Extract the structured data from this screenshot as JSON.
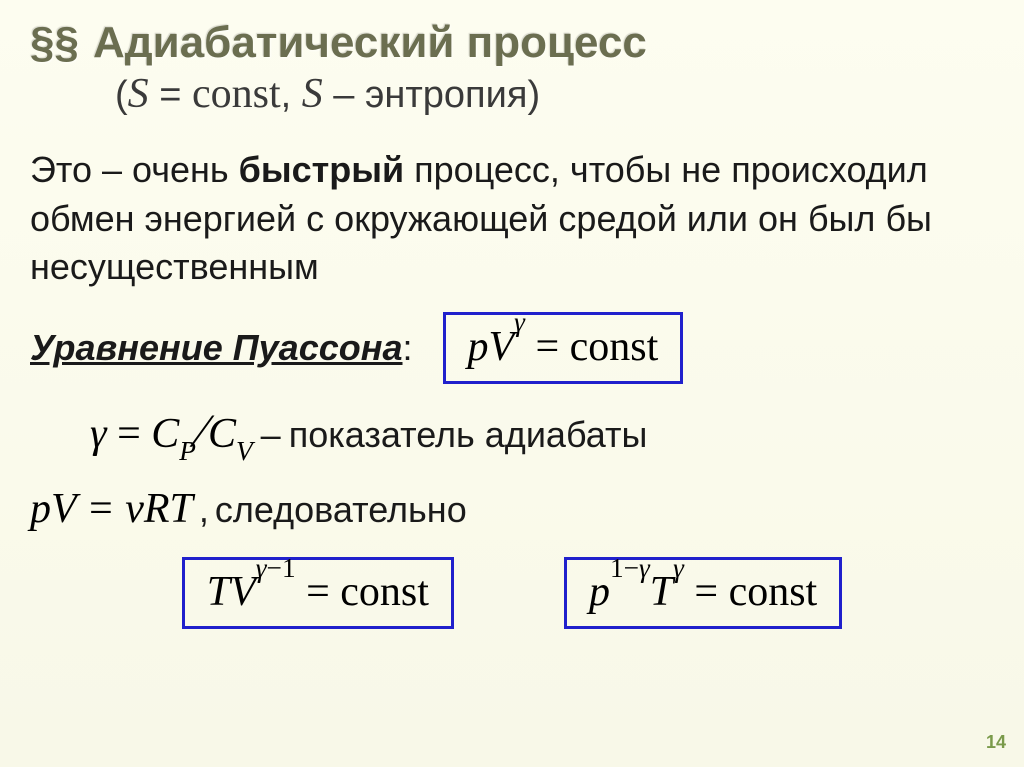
{
  "header": {
    "section_mark": "§§",
    "title": "Адиабатический процесс",
    "subtitle_open": "(",
    "subtitle_var1": "S",
    "subtitle_eq": " = ",
    "subtitle_const": "const",
    "subtitle_sep": ", ",
    "subtitle_var2": "S",
    "subtitle_dash": " – ",
    "subtitle_word": "энтропия",
    "subtitle_close": ")"
  },
  "paragraph": {
    "p1": "Это – очень ",
    "bold": "быстрый",
    "p2": " процесс, чтобы не происходил обмен энергией с окружающей средой или он был бы несущественным"
  },
  "poisson": {
    "label": "Уравнение Пуассона",
    "colon": ":",
    "eq_lhs_p": "p",
    "eq_lhs_V": "V",
    "eq_exp": "γ",
    "eq_eq": " = ",
    "eq_rhs": "const"
  },
  "gamma_def": {
    "gamma": "γ",
    "eq": " = ",
    "Cp": "C",
    "Cp_sub": "P",
    "slash": "⁄",
    "Cv": "C",
    "Cv_sub": "V",
    "dash": " – ",
    "desc": "показатель адиабаты"
  },
  "ideal_gas": {
    "lhs": "pV = νRT",
    "comma": ", ",
    "desc": "следовательно"
  },
  "box_tv": {
    "T": "T",
    "V": "V",
    "exp_pre": "γ",
    "exp_minus": "−1",
    "eq": " = ",
    "rhs": "const"
  },
  "box_pt": {
    "p": "p",
    "p_exp_pre": "1−",
    "p_exp": "γ",
    "T": "T",
    "T_exp": "γ",
    "eq": " = ",
    "rhs": "const"
  },
  "page": {
    "number": "14"
  },
  "style": {
    "box_border_color": "#2020cc",
    "title_color": "#6b6e50",
    "background_gradient_top": "#fdfdf0",
    "background_gradient_bottom": "#f8f8e8",
    "page_num_color": "#7a9a4a"
  }
}
